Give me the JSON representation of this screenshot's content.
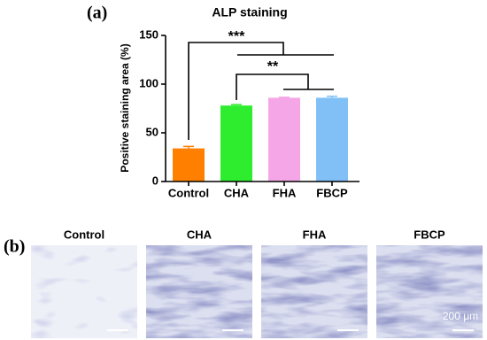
{
  "chart_data": {
    "type": "bar",
    "panel_label": "(a)",
    "title": "ALP staining",
    "y_label": "Positive staining area (%)",
    "categories": [
      "Control",
      "CHA",
      "FHA",
      "FBCP"
    ],
    "values": [
      34,
      78,
      86,
      86
    ],
    "errors": [
      2,
      1,
      0.5,
      1.5
    ],
    "colors": [
      "#ff8000",
      "#2eec2e",
      "#f5a6e6",
      "#80c0f7"
    ],
    "ylim": [
      0,
      150
    ],
    "yticks": [
      0,
      50,
      100,
      150
    ],
    "annotations": [
      "***",
      "**"
    ]
  },
  "panel_b": {
    "label": "(b)",
    "images": [
      "Control",
      "CHA",
      "FHA",
      "FBCP"
    ],
    "scale_bar": "200 μm"
  }
}
